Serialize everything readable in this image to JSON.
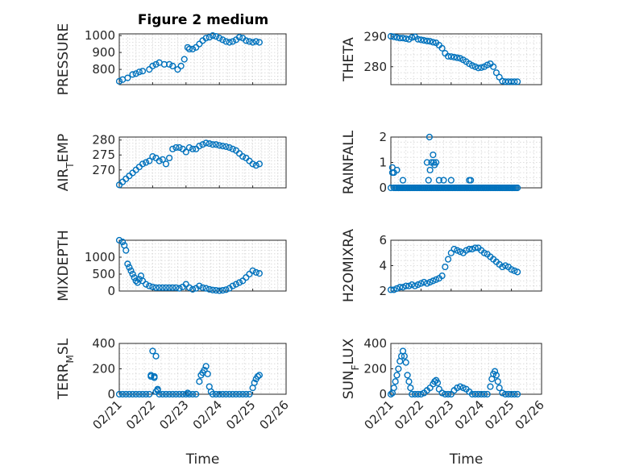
{
  "figure": {
    "title": "Figure 2 medium"
  },
  "chart_data": [
    {
      "id": "pressure",
      "type": "scatter",
      "ylabel": "PRESSURE",
      "xlabel": "",
      "ylim": [
        710,
        1010
      ],
      "yticks": [
        800,
        900,
        1000
      ],
      "xlim": [
        "02/21",
        "02/26"
      ],
      "show_xticks": false,
      "grid": true,
      "x": [
        0.0,
        0.1,
        0.25,
        0.4,
        0.5,
        0.6,
        0.7,
        0.9,
        1.0,
        1.1,
        1.2,
        1.35,
        1.5,
        1.6,
        1.75,
        1.85,
        1.95,
        2.05,
        2.1,
        2.2,
        2.3,
        2.4,
        2.5,
        2.6,
        2.7,
        2.8,
        2.9,
        3.0,
        3.1,
        3.2,
        3.3,
        3.4,
        3.5,
        3.6,
        3.7,
        3.8,
        3.9,
        4.0,
        4.1,
        4.2
      ],
      "y": [
        730,
        740,
        750,
        770,
        775,
        785,
        790,
        800,
        820,
        830,
        840,
        830,
        830,
        820,
        800,
        820,
        860,
        930,
        920,
        920,
        930,
        950,
        970,
        985,
        990,
        1000,
        995,
        985,
        975,
        965,
        960,
        965,
        975,
        990,
        985,
        970,
        965,
        960,
        965,
        960
      ]
    },
    {
      "id": "theta",
      "type": "scatter",
      "ylabel": "THETA",
      "xlabel": "",
      "ylim": [
        274,
        291
      ],
      "yticks": [
        280,
        290
      ],
      "xlim": [
        "02/21",
        "02/26"
      ],
      "show_xticks": false,
      "grid": true,
      "x": [
        0.0,
        0.1,
        0.2,
        0.3,
        0.4,
        0.5,
        0.6,
        0.7,
        0.8,
        0.9,
        1.0,
        1.1,
        1.2,
        1.3,
        1.4,
        1.5,
        1.6,
        1.7,
        1.8,
        1.9,
        2.0,
        2.1,
        2.2,
        2.3,
        2.4,
        2.5,
        2.6,
        2.7,
        2.8,
        2.9,
        3.0,
        3.1,
        3.2,
        3.3,
        3.4,
        3.5,
        3.6,
        3.7,
        3.8,
        3.9,
        4.0,
        4.1,
        4.2
      ],
      "y": [
        290.2,
        290.0,
        289.8,
        289.6,
        289.6,
        289.4,
        289.2,
        289.8,
        290.0,
        289.2,
        289.0,
        288.8,
        288.6,
        288.5,
        288.2,
        288.0,
        287.2,
        286.2,
        284.5,
        283.5,
        283.4,
        283.2,
        283.0,
        282.8,
        282.3,
        281.7,
        281.0,
        280.4,
        280.0,
        279.6,
        279.7,
        280.0,
        280.6,
        281.0,
        280.0,
        278.0,
        276.5,
        275.2,
        275.0,
        275.0,
        275.0,
        275.0,
        275.0
      ]
    },
    {
      "id": "air_temp",
      "type": "scatter",
      "ylabel": "AIR_TEMP",
      "xlabel": "",
      "ylim": [
        264,
        281
      ],
      "yticks": [
        270,
        275,
        280
      ],
      "xlim": [
        "02/21",
        "02/26"
      ],
      "show_xticks": false,
      "grid": true,
      "x": [
        0.0,
        0.1,
        0.2,
        0.3,
        0.4,
        0.5,
        0.6,
        0.7,
        0.8,
        0.9,
        1.0,
        1.1,
        1.2,
        1.3,
        1.4,
        1.5,
        1.6,
        1.7,
        1.8,
        1.9,
        2.0,
        2.1,
        2.2,
        2.3,
        2.4,
        2.5,
        2.6,
        2.7,
        2.8,
        2.9,
        3.0,
        3.1,
        3.2,
        3.3,
        3.4,
        3.5,
        3.6,
        3.7,
        3.8,
        3.9,
        4.0,
        4.1,
        4.2
      ],
      "y": [
        265.0,
        266.0,
        267.0,
        268.0,
        269.0,
        270.0,
        271.0,
        272.0,
        272.5,
        273.0,
        274.5,
        274.0,
        273.0,
        273.5,
        272.0,
        274.0,
        277.0,
        277.5,
        277.5,
        277.0,
        276.0,
        277.5,
        277.0,
        277.0,
        278.0,
        278.5,
        279.0,
        278.8,
        278.5,
        278.5,
        278.2,
        278.0,
        277.8,
        277.5,
        277.0,
        276.5,
        275.5,
        274.5,
        274.0,
        273.0,
        272.0,
        271.5,
        272.0
      ]
    },
    {
      "id": "rainfall",
      "type": "scatter",
      "ylabel": "RAINFALL",
      "xlabel": "",
      "ylim": [
        0,
        2
      ],
      "yticks": [
        0,
        1,
        2
      ],
      "xlim": [
        "02/21",
        "02/26"
      ],
      "show_xticks": false,
      "grid": true,
      "x": [
        0.0,
        0.05,
        0.1,
        0.15,
        0.2,
        0.25,
        0.3,
        0.35,
        0.4,
        0.45,
        0.5,
        0.55,
        0.6,
        0.65,
        0.7,
        0.75,
        0.8,
        0.85,
        0.9,
        0.95,
        1.0,
        1.05,
        1.1,
        1.15,
        1.2,
        1.25,
        1.3,
        1.35,
        1.4,
        1.45,
        1.5,
        1.55,
        1.6,
        1.65,
        1.7,
        1.75,
        1.8,
        1.85,
        1.9,
        1.95,
        2.0,
        2.05,
        2.1,
        2.15,
        2.2,
        2.25,
        2.3,
        2.35,
        2.4,
        2.45,
        2.5,
        2.55,
        2.6,
        2.65,
        2.7,
        2.75,
        2.8,
        2.85,
        2.9,
        2.95,
        3.0,
        3.05,
        3.1,
        3.15,
        3.2,
        3.25,
        3.3,
        3.35,
        3.4,
        3.45,
        3.5,
        3.55,
        3.6,
        3.65,
        3.7,
        3.75,
        3.8,
        3.85,
        3.9,
        3.95,
        4.0,
        4.05,
        4.1,
        4.15,
        4.2,
        0.05,
        0.1,
        0.2,
        0.25,
        0.4,
        1.2,
        1.25,
        1.28,
        1.3,
        1.35,
        1.4,
        1.42,
        1.45,
        1.5,
        1.6,
        1.75,
        2.0,
        2.6,
        2.65
      ],
      "y": [
        0,
        0.6,
        0,
        0,
        0.7,
        0,
        0,
        0,
        0,
        0,
        0,
        0,
        0,
        0,
        0,
        0,
        0,
        0,
        0,
        0,
        0,
        0,
        0,
        0,
        0,
        0,
        0,
        0,
        0,
        0,
        0,
        0,
        0,
        0,
        0,
        0,
        0,
        0,
        0,
        0,
        0,
        0,
        0,
        0,
        0,
        0,
        0,
        0,
        0,
        0,
        0,
        0,
        0,
        0,
        0,
        0,
        0,
        0,
        0,
        0,
        0,
        0,
        0,
        0,
        0,
        0,
        0,
        0,
        0,
        0,
        0,
        0,
        0,
        0,
        0,
        0,
        0,
        0,
        0,
        0,
        0,
        0,
        0,
        0,
        0,
        0.8,
        0.6,
        0,
        0,
        0.3,
        1.0,
        0.3,
        2.0,
        0.7,
        1.0,
        1.3,
        1.0,
        0.9,
        1.0,
        0.3,
        0.3,
        0.3,
        0.3,
        0.3
      ]
    },
    {
      "id": "mixdepth",
      "type": "scatter",
      "ylabel": "MIXDEPTH",
      "xlabel": "",
      "ylim": [
        0,
        1500
      ],
      "yticks": [
        0,
        500,
        1000
      ],
      "xlim": [
        "02/21",
        "02/26"
      ],
      "show_xticks": false,
      "grid": true,
      "x": [
        0.0,
        0.1,
        0.15,
        0.2,
        0.25,
        0.3,
        0.35,
        0.4,
        0.45,
        0.5,
        0.55,
        0.6,
        0.65,
        0.7,
        0.8,
        0.9,
        1.0,
        1.1,
        1.2,
        1.3,
        1.4,
        1.5,
        1.6,
        1.7,
        1.8,
        1.9,
        2.0,
        2.1,
        2.2,
        2.3,
        2.4,
        2.5,
        2.6,
        2.7,
        2.8,
        2.9,
        3.0,
        3.1,
        3.2,
        3.3,
        3.4,
        3.5,
        3.6,
        3.7,
        3.8,
        3.9,
        4.0,
        4.1,
        4.2
      ],
      "y": [
        1500,
        1450,
        1350,
        1200,
        800,
        700,
        600,
        500,
        400,
        300,
        250,
        350,
        450,
        300,
        200,
        150,
        120,
        100,
        100,
        100,
        100,
        100,
        100,
        100,
        80,
        120,
        200,
        100,
        50,
        80,
        150,
        100,
        80,
        50,
        30,
        20,
        10,
        20,
        40,
        80,
        150,
        200,
        250,
        300,
        400,
        500,
        600,
        550,
        520
      ]
    },
    {
      "id": "h2omixra",
      "type": "scatter",
      "ylabel": "H2OMIXRA",
      "xlabel": "",
      "ylim": [
        2,
        6
      ],
      "yticks": [
        2,
        4,
        6
      ],
      "xlim": [
        "02/21",
        "02/26"
      ],
      "show_xticks": false,
      "grid": true,
      "x": [
        0.0,
        0.1,
        0.2,
        0.3,
        0.4,
        0.5,
        0.6,
        0.7,
        0.8,
        0.9,
        1.0,
        1.1,
        1.2,
        1.3,
        1.4,
        1.5,
        1.6,
        1.7,
        1.8,
        1.9,
        2.0,
        2.1,
        2.2,
        2.3,
        2.4,
        2.5,
        2.6,
        2.7,
        2.8,
        2.9,
        3.0,
        3.1,
        3.2,
        3.3,
        3.4,
        3.5,
        3.6,
        3.7,
        3.8,
        3.9,
        4.0,
        4.1,
        4.2
      ],
      "y": [
        2.1,
        2.1,
        2.2,
        2.3,
        2.3,
        2.4,
        2.4,
        2.5,
        2.4,
        2.5,
        2.6,
        2.7,
        2.6,
        2.7,
        2.8,
        2.9,
        3.0,
        3.2,
        3.9,
        4.5,
        5.0,
        5.3,
        5.2,
        5.1,
        5.0,
        5.2,
        5.3,
        5.3,
        5.4,
        5.4,
        5.2,
        5.0,
        4.9,
        4.7,
        4.5,
        4.3,
        4.1,
        3.9,
        4.0,
        3.9,
        3.7,
        3.6,
        3.5
      ]
    },
    {
      "id": "terr_msl",
      "type": "scatter",
      "ylabel": "TERR_MSL",
      "xlabel": "Time",
      "ylim": [
        0,
        400
      ],
      "yticks": [
        0,
        200,
        400
      ],
      "xlim": [
        "02/21",
        "02/26"
      ],
      "show_xticks": true,
      "grid": true,
      "x": [
        0.0,
        0.1,
        0.2,
        0.3,
        0.4,
        0.5,
        0.6,
        0.7,
        0.8,
        0.9,
        0.95,
        1.0,
        1.05,
        1.1,
        1.15,
        1.2,
        1.3,
        1.4,
        1.5,
        1.6,
        1.7,
        1.8,
        1.9,
        2.0,
        2.05,
        2.1,
        2.2,
        2.3,
        2.4,
        2.45,
        2.5,
        2.55,
        2.6,
        2.65,
        2.7,
        2.75,
        2.8,
        2.9,
        3.0,
        3.1,
        3.2,
        3.3,
        3.4,
        3.5,
        3.6,
        3.7,
        3.8,
        3.9,
        4.0,
        4.05,
        4.1,
        4.15,
        4.2,
        0.95,
        1.05,
        1.1,
        1.15
      ],
      "y": [
        0,
        0,
        0,
        0,
        0,
        0,
        0,
        0,
        0,
        0,
        150,
        340,
        140,
        300,
        40,
        0,
        0,
        0,
        0,
        0,
        0,
        0,
        0,
        0,
        10,
        0,
        0,
        0,
        100,
        150,
        170,
        190,
        220,
        160,
        60,
        20,
        0,
        0,
        0,
        0,
        0,
        0,
        0,
        0,
        0,
        0,
        0,
        0,
        50,
        90,
        120,
        140,
        150,
        140,
        130,
        20,
        30
      ]
    },
    {
      "id": "sun_flux",
      "type": "scatter",
      "ylabel": "SUN_FLUX",
      "xlabel": "Time",
      "ylim": [
        0,
        400
      ],
      "yticks": [
        0,
        200,
        400
      ],
      "xlim": [
        "02/21",
        "02/26"
      ],
      "show_xticks": true,
      "grid": true,
      "x": [
        0.0,
        0.05,
        0.1,
        0.15,
        0.2,
        0.25,
        0.3,
        0.35,
        0.4,
        0.45,
        0.5,
        0.55,
        0.6,
        0.65,
        0.7,
        0.8,
        0.9,
        1.0,
        1.1,
        1.2,
        1.3,
        1.4,
        1.45,
        1.5,
        1.55,
        1.6,
        1.7,
        1.8,
        1.9,
        2.0,
        2.1,
        2.2,
        2.3,
        2.4,
        2.5,
        2.6,
        2.7,
        2.8,
        2.9,
        3.0,
        3.1,
        3.2,
        3.3,
        3.35,
        3.4,
        3.45,
        3.5,
        3.55,
        3.6,
        3.7,
        3.8,
        3.9,
        4.0,
        4.1,
        4.2
      ],
      "y": [
        0,
        10,
        50,
        100,
        150,
        200,
        260,
        300,
        340,
        300,
        250,
        150,
        100,
        50,
        0,
        0,
        0,
        0,
        10,
        30,
        50,
        80,
        100,
        110,
        90,
        40,
        10,
        0,
        0,
        0,
        30,
        50,
        60,
        50,
        40,
        20,
        0,
        0,
        0,
        0,
        0,
        0,
        60,
        120,
        160,
        180,
        150,
        100,
        50,
        10,
        0,
        0,
        0,
        0,
        0
      ]
    }
  ],
  "x_tick_labels": [
    "02/21",
    "02/22",
    "02/23",
    "02/24",
    "02/25",
    "02/26"
  ]
}
